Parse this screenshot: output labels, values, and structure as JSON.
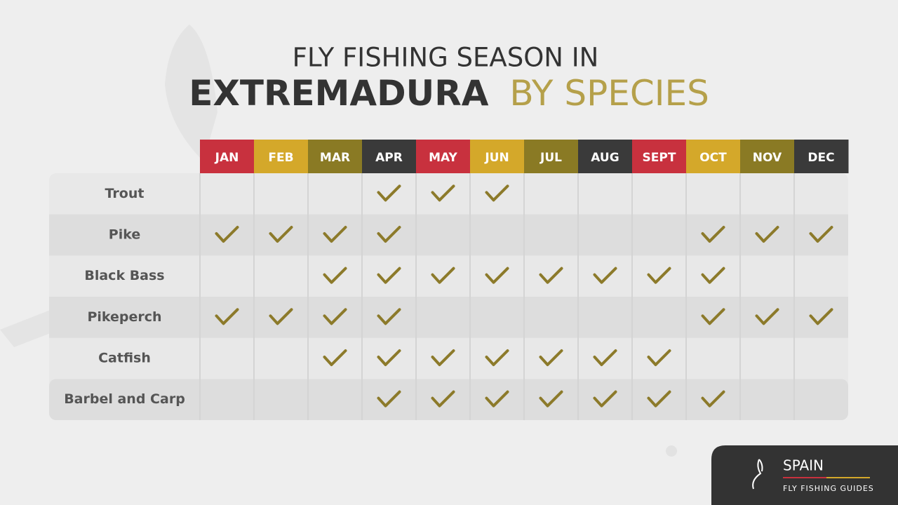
{
  "header": {
    "title_line1": "FLY FISHING SEASON IN",
    "title_bold": "EXTREMADURA",
    "title_accent": "BY SPECIES"
  },
  "table": {
    "months": [
      {
        "label": "JAN",
        "color": "#c8313e"
      },
      {
        "label": "FEB",
        "color": "#d4a82a"
      },
      {
        "label": "MAR",
        "color": "#8a7a24"
      },
      {
        "label": "APR",
        "color": "#3a3a3a"
      },
      {
        "label": "MAY",
        "color": "#c8313e"
      },
      {
        "label": "JUN",
        "color": "#d4a82a"
      },
      {
        "label": "JUL",
        "color": "#8a7a24"
      },
      {
        "label": "AUG",
        "color": "#3a3a3a"
      },
      {
        "label": "SEPT",
        "color": "#c8313e"
      },
      {
        "label": "OCT",
        "color": "#d4a82a"
      },
      {
        "label": "NOV",
        "color": "#8a7a24"
      },
      {
        "label": "DEC",
        "color": "#3a3a3a"
      }
    ],
    "check_color": "#8c7a2a",
    "rows": [
      {
        "species": "Trout",
        "season": [
          false,
          false,
          false,
          true,
          true,
          true,
          false,
          false,
          false,
          false,
          false,
          false
        ]
      },
      {
        "species": "Pike",
        "season": [
          true,
          true,
          true,
          true,
          false,
          false,
          false,
          false,
          false,
          true,
          true,
          true
        ]
      },
      {
        "species": "Black Bass",
        "season": [
          false,
          false,
          true,
          true,
          true,
          true,
          true,
          true,
          true,
          true,
          false,
          false
        ]
      },
      {
        "species": "Pikeperch",
        "season": [
          true,
          true,
          true,
          true,
          false,
          false,
          false,
          false,
          false,
          true,
          true,
          true
        ]
      },
      {
        "species": "Catfish",
        "season": [
          false,
          false,
          true,
          true,
          true,
          true,
          true,
          true,
          true,
          false,
          false,
          false
        ]
      },
      {
        "species": "Barbel and Carp",
        "season": [
          false,
          false,
          false,
          true,
          true,
          true,
          true,
          true,
          true,
          true,
          false,
          false
        ]
      }
    ]
  },
  "logo": {
    "name": "SPAIN",
    "tagline": "FLY FISHING GUIDES"
  }
}
